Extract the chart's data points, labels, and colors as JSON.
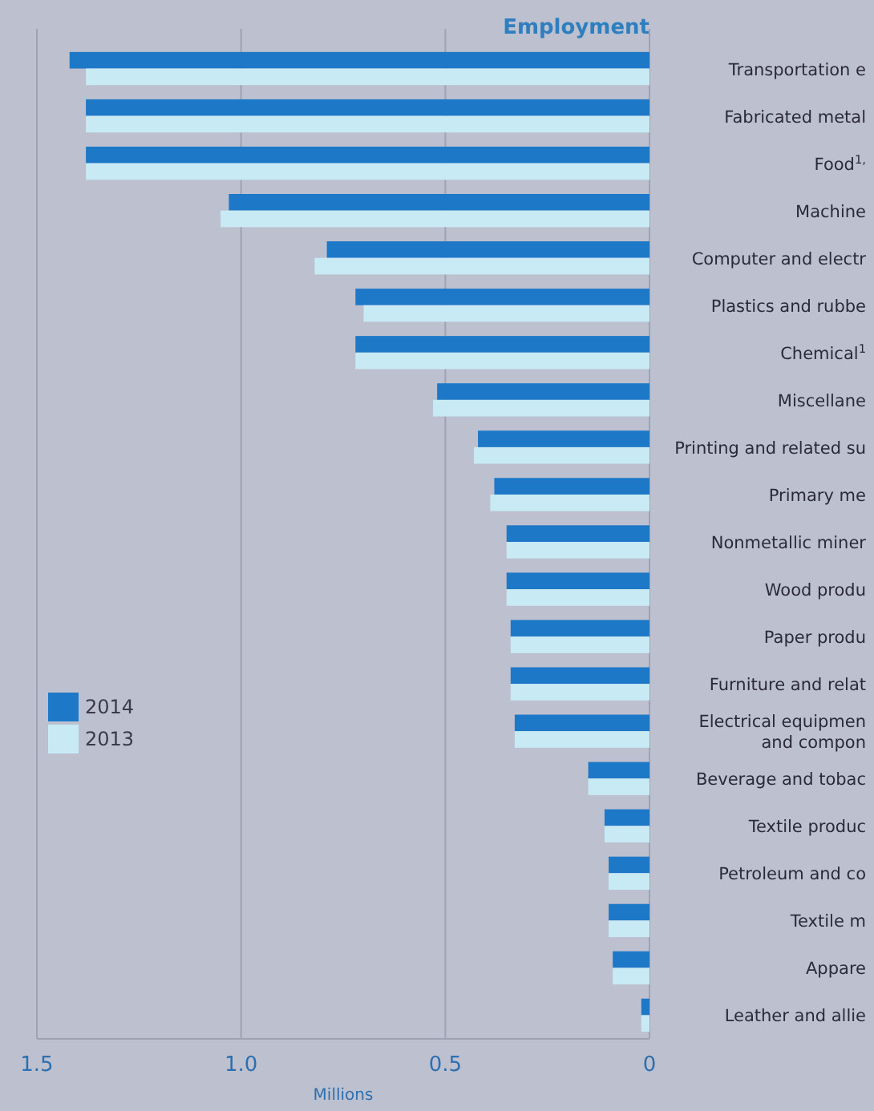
{
  "chart_data": {
    "type": "bar",
    "orientation": "horizontal",
    "title": "Employment",
    "xlabel": "Millions",
    "categories": [
      "Transportation e",
      "Fabricated metal",
      "Food$^{1,}$",
      "Machine",
      "Computer and electr",
      "Plastics and rubbe",
      "Chemical$^{1}$",
      "Miscellane",
      "Printing and related su",
      "Primary me",
      "Nonmetallic miner",
      "Wood produ",
      "Paper produ",
      "Furniture and relat",
      "Electrical equipmen\nand compon",
      "Beverage and tobac",
      "Textile produc",
      "Petroleum and co",
      "Textile m",
      "Appare",
      "Leather and allie"
    ],
    "series": [
      {
        "name": "2014",
        "color": "#1e78c8",
        "values": [
          1.42,
          1.38,
          1.38,
          1.03,
          0.79,
          0.72,
          0.72,
          0.52,
          0.42,
          0.38,
          0.35,
          0.35,
          0.34,
          0.34,
          0.33,
          0.15,
          0.11,
          0.1,
          0.1,
          0.09,
          0.02
        ]
      },
      {
        "name": "2013",
        "color": "#c8eaf5",
        "values": [
          1.38,
          1.38,
          1.38,
          1.05,
          0.82,
          0.7,
          0.72,
          0.53,
          0.43,
          0.39,
          0.35,
          0.35,
          0.34,
          0.34,
          0.33,
          0.15,
          0.11,
          0.1,
          0.1,
          0.09,
          0.02
        ]
      }
    ],
    "xlim": [
      1.5,
      0
    ],
    "xticks": [
      {
        "value": 1.5,
        "label": "1.5"
      },
      {
        "value": 1,
        "label": "1.0"
      },
      {
        "value": 0.5,
        "label": "0.5"
      },
      0
    ],
    "grid": "x",
    "legend": "left"
  }
}
